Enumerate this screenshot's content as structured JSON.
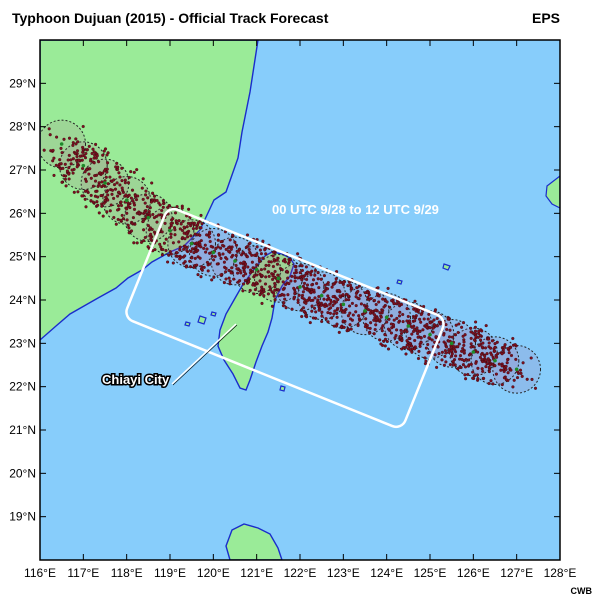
{
  "title": "Typhoon Dujuan (2015) - Official Track Forecast",
  "tag": "EPS",
  "credit": "CWB",
  "annotations": {
    "period": "00 UTC 9/28 to 12 UTC 9/29",
    "city": "Chiayi City"
  },
  "colors": {
    "ocean": "#87cdfb",
    "land": "#9aeb98",
    "coast": "#1a2ccc",
    "member_point": "#7a1020",
    "mean_point": "#1e8a2a",
    "circle_fill": "#b04a8a",
    "box": "#ffffff"
  },
  "map": {
    "lon_range": [
      116,
      128
    ],
    "lat_range": [
      18,
      30
    ],
    "lon_ticks": [
      "116°E",
      "117°E",
      "118°E",
      "119°E",
      "120°E",
      "121°E",
      "122°E",
      "123°E",
      "124°E",
      "125°E",
      "126°E",
      "127°E",
      "128°E"
    ],
    "lat_ticks": [
      "19°N",
      "20°N",
      "21°N",
      "22°N",
      "23°N",
      "24°N",
      "25°N",
      "26°N",
      "27°N",
      "28°N",
      "29°N"
    ]
  },
  "track": {
    "mean_positions": [
      [
        127.0,
        22.4
      ],
      [
        126.5,
        22.6
      ],
      [
        126.0,
        22.8
      ],
      [
        125.5,
        23.0
      ],
      [
        125.0,
        23.2
      ],
      [
        124.5,
        23.4
      ],
      [
        124.0,
        23.6
      ],
      [
        123.5,
        23.75
      ],
      [
        123.0,
        23.9
      ],
      [
        122.5,
        24.1
      ],
      [
        122.0,
        24.3
      ],
      [
        121.5,
        24.5
      ],
      [
        121.0,
        24.7
      ],
      [
        120.5,
        24.9
      ],
      [
        120.0,
        25.1
      ],
      [
        119.5,
        25.3
      ],
      [
        119.0,
        25.6
      ],
      [
        118.5,
        25.9
      ],
      [
        118.0,
        26.3
      ],
      [
        117.5,
        26.7
      ],
      [
        117.0,
        27.1
      ],
      [
        116.5,
        27.6
      ]
    ],
    "circle_radius_deg": 0.55,
    "scatter_half_width_deg": 0.55
  }
}
